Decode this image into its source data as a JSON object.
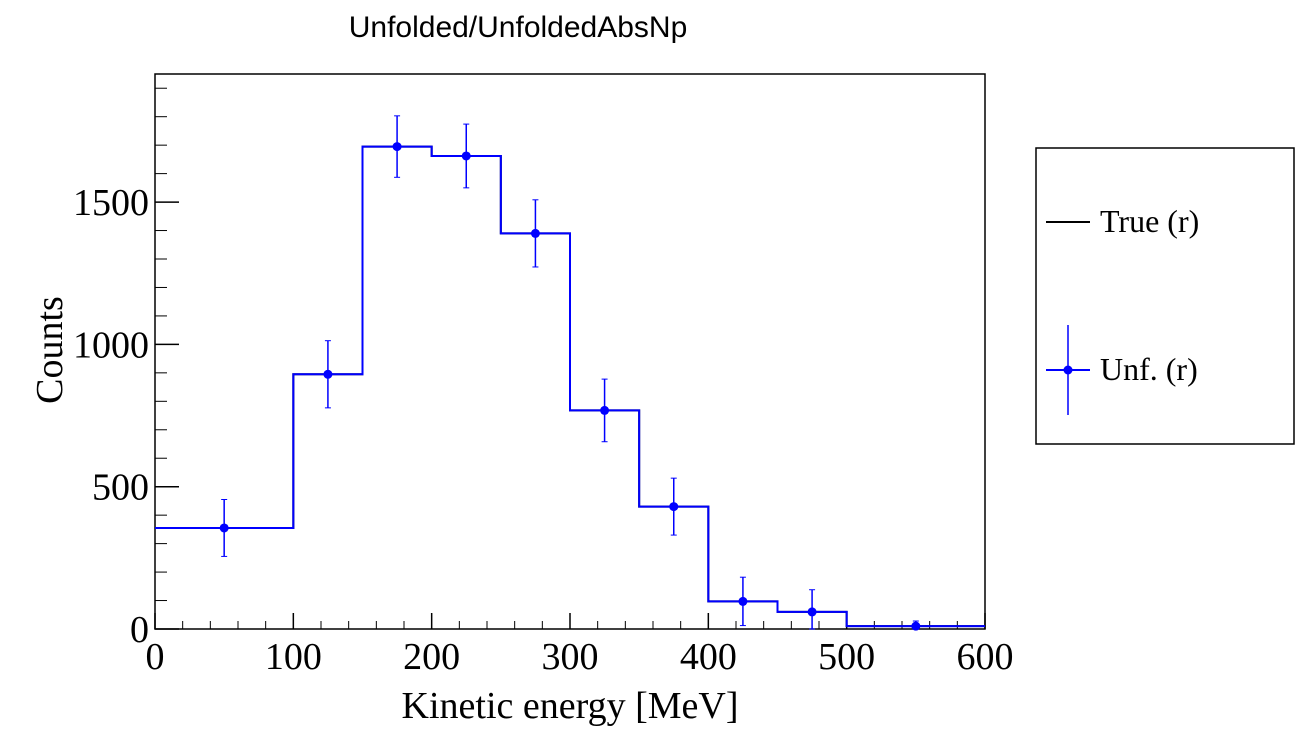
{
  "chart_data": {
    "type": "line",
    "title": "Unfolded/UnfoldedAbsNp",
    "xlabel": "Kinetic energy [MeV]",
    "ylabel": "Counts",
    "xlim": [
      0,
      600
    ],
    "ylim": [
      0,
      1950
    ],
    "x_ticks": [
      0,
      100,
      200,
      300,
      400,
      500,
      600
    ],
    "y_ticks": [
      0,
      500,
      1000,
      1500
    ],
    "grid": false,
    "legend_position": "right",
    "bin_edges": [
      0,
      100,
      150,
      200,
      250,
      300,
      350,
      400,
      450,
      500,
      600
    ],
    "series": [
      {
        "name": "True (r)",
        "style": "step",
        "color": "#000000",
        "values": [
          355,
          895,
          1695,
          1662,
          1390,
          768,
          430,
          97,
          60,
          10
        ]
      },
      {
        "name": "Unf. (r)",
        "style": "points-with-errors",
        "color": "#0000ff",
        "x": [
          50,
          125,
          175,
          225,
          275,
          325,
          375,
          425,
          475,
          550
        ],
        "x_err": [
          50,
          25,
          25,
          25,
          25,
          25,
          25,
          25,
          25,
          50
        ],
        "values": [
          355,
          895,
          1695,
          1662,
          1390,
          768,
          430,
          97,
          60,
          10
        ],
        "y_err": [
          100,
          118,
          108,
          112,
          118,
          110,
          100,
          85,
          78,
          18
        ]
      }
    ]
  }
}
